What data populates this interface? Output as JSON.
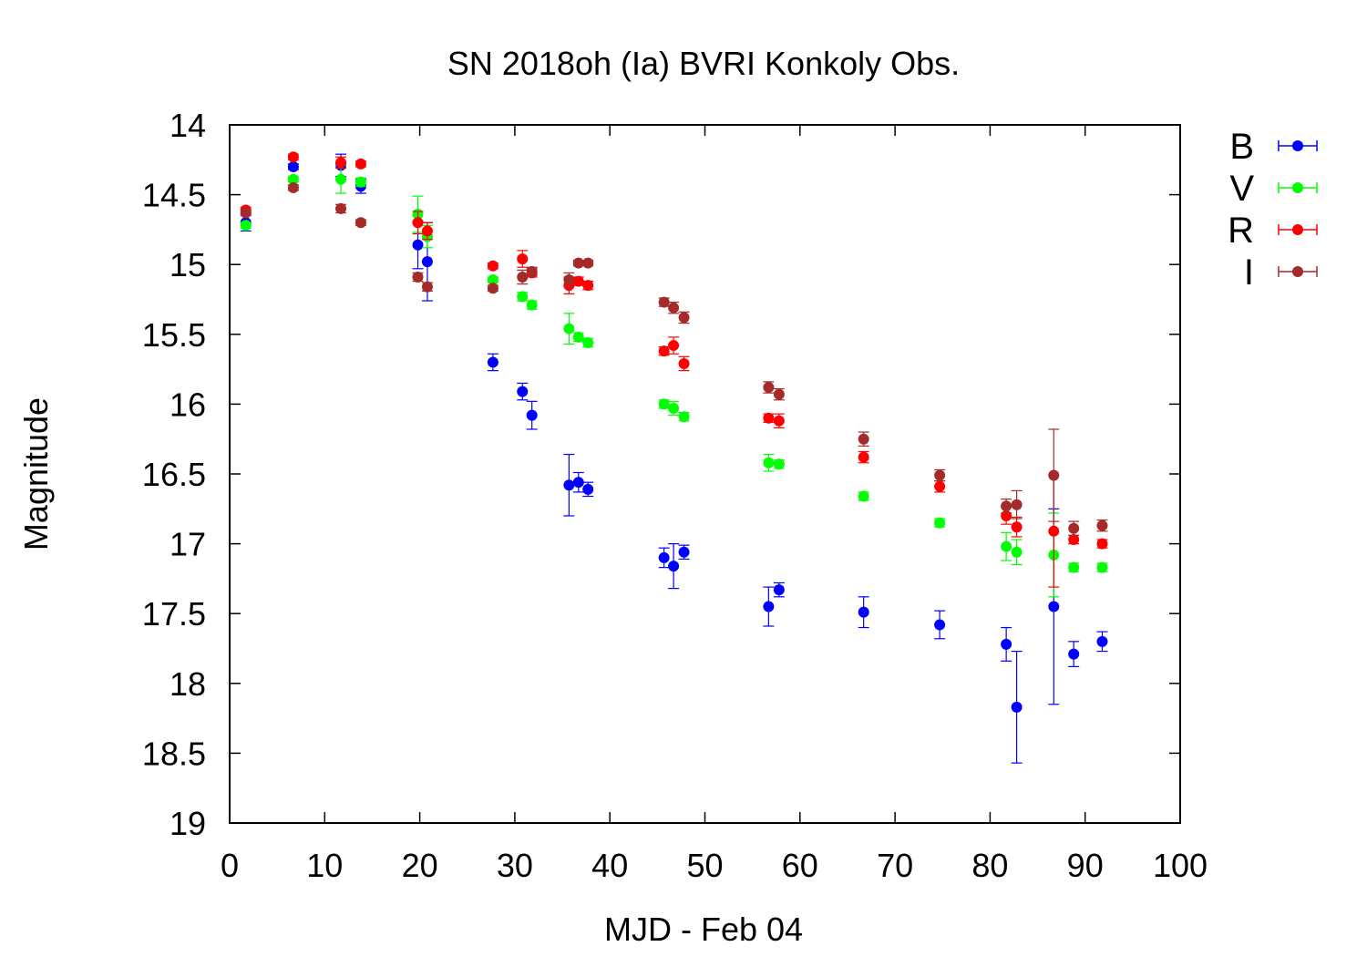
{
  "chart_data": {
    "type": "scatter",
    "title": "SN 2018oh (Ia) BVRI Konkoly Obs.",
    "xlabel": "MJD - Feb 04",
    "ylabel": "Magnitude",
    "xlim": [
      0,
      100
    ],
    "ylim": [
      14,
      19
    ],
    "y_inverted": true,
    "grid": false,
    "legend_position": "outside-right",
    "error_bars": true,
    "x_ticks": [
      0,
      10,
      20,
      30,
      40,
      50,
      60,
      70,
      80,
      90,
      100
    ],
    "y_ticks": [
      14,
      14.5,
      15,
      15.5,
      16,
      16.5,
      17,
      17.5,
      18,
      18.5,
      19
    ],
    "series": [
      {
        "name": "B",
        "color": "#0000ff",
        "points": [
          {
            "x": 1.7,
            "y": 14.7,
            "err": 0.06
          },
          {
            "x": 6.7,
            "y": 14.3,
            "err": 0.02
          },
          {
            "x": 11.7,
            "y": 14.29,
            "err": 0.08
          },
          {
            "x": 13.8,
            "y": 14.44,
            "err": 0.05
          },
          {
            "x": 19.8,
            "y": 14.86,
            "err": 0.17
          },
          {
            "x": 20.8,
            "y": 14.98,
            "err": 0.28
          },
          {
            "x": 27.7,
            "y": 15.7,
            "err": 0.06
          },
          {
            "x": 30.8,
            "y": 15.91,
            "err": 0.06
          },
          {
            "x": 31.8,
            "y": 16.08,
            "err": 0.1
          },
          {
            "x": 35.7,
            "y": 16.58,
            "err": 0.22
          },
          {
            "x": 36.7,
            "y": 16.56,
            "err": 0.07
          },
          {
            "x": 37.7,
            "y": 16.61,
            "err": 0.05
          },
          {
            "x": 45.7,
            "y": 17.1,
            "err": 0.07
          },
          {
            "x": 46.7,
            "y": 17.16,
            "err": 0.16
          },
          {
            "x": 47.8,
            "y": 17.06,
            "err": 0.05
          },
          {
            "x": 56.7,
            "y": 17.45,
            "err": 0.14
          },
          {
            "x": 57.8,
            "y": 17.33,
            "err": 0.05
          },
          {
            "x": 66.7,
            "y": 17.49,
            "err": 0.11
          },
          {
            "x": 74.7,
            "y": 17.58,
            "err": 0.1
          },
          {
            "x": 81.7,
            "y": 17.72,
            "err": 0.12
          },
          {
            "x": 82.8,
            "y": 18.17,
            "err": 0.4
          },
          {
            "x": 86.7,
            "y": 17.45,
            "err": 0.7
          },
          {
            "x": 88.8,
            "y": 17.79,
            "err": 0.09
          },
          {
            "x": 91.8,
            "y": 17.7,
            "err": 0.07
          }
        ]
      },
      {
        "name": "V",
        "color": "#00ff00",
        "points": [
          {
            "x": 1.7,
            "y": 14.72,
            "err": 0.02
          },
          {
            "x": 6.7,
            "y": 14.39,
            "err": 0.02
          },
          {
            "x": 11.7,
            "y": 14.39,
            "err": 0.1
          },
          {
            "x": 13.8,
            "y": 14.41,
            "err": 0.03
          },
          {
            "x": 19.8,
            "y": 14.64,
            "err": 0.13
          },
          {
            "x": 20.8,
            "y": 14.8,
            "err": 0.08
          },
          {
            "x": 27.7,
            "y": 15.11,
            "err": 0.02
          },
          {
            "x": 30.8,
            "y": 15.23,
            "err": 0.03
          },
          {
            "x": 31.8,
            "y": 15.29,
            "err": 0.03
          },
          {
            "x": 35.7,
            "y": 15.46,
            "err": 0.11
          },
          {
            "x": 36.7,
            "y": 15.52,
            "err": 0.03
          },
          {
            "x": 37.7,
            "y": 15.56,
            "err": 0.03
          },
          {
            "x": 45.7,
            "y": 16.0,
            "err": 0.03
          },
          {
            "x": 46.7,
            "y": 16.03,
            "err": 0.05
          },
          {
            "x": 47.8,
            "y": 16.09,
            "err": 0.03
          },
          {
            "x": 56.7,
            "y": 16.42,
            "err": 0.06
          },
          {
            "x": 57.8,
            "y": 16.43,
            "err": 0.03
          },
          {
            "x": 66.7,
            "y": 16.66,
            "err": 0.03
          },
          {
            "x": 74.7,
            "y": 16.85,
            "err": 0.03
          },
          {
            "x": 81.7,
            "y": 17.02,
            "err": 0.1
          },
          {
            "x": 82.8,
            "y": 17.06,
            "err": 0.09
          },
          {
            "x": 86.7,
            "y": 17.08,
            "err": 0.3
          },
          {
            "x": 88.8,
            "y": 17.17,
            "err": 0.03
          },
          {
            "x": 91.8,
            "y": 17.17,
            "err": 0.03
          }
        ]
      },
      {
        "name": "R",
        "color": "#ff0000",
        "points": [
          {
            "x": 1.7,
            "y": 14.61,
            "err": 0.02
          },
          {
            "x": 6.7,
            "y": 14.23,
            "err": 0.02
          },
          {
            "x": 11.7,
            "y": 14.27,
            "err": 0.04
          },
          {
            "x": 13.8,
            "y": 14.28,
            "err": 0.02
          },
          {
            "x": 19.8,
            "y": 14.7,
            "err": 0.08
          },
          {
            "x": 20.8,
            "y": 14.76,
            "err": 0.06
          },
          {
            "x": 27.7,
            "y": 15.01,
            "err": 0.02
          },
          {
            "x": 30.8,
            "y": 14.96,
            "err": 0.06
          },
          {
            "x": 31.8,
            "y": 15.06,
            "err": 0.03
          },
          {
            "x": 35.7,
            "y": 15.15,
            "err": 0.06
          },
          {
            "x": 36.7,
            "y": 15.12,
            "err": 0.03
          },
          {
            "x": 37.7,
            "y": 15.15,
            "err": 0.03
          },
          {
            "x": 45.7,
            "y": 15.62,
            "err": 0.03
          },
          {
            "x": 46.7,
            "y": 15.58,
            "err": 0.06
          },
          {
            "x": 47.8,
            "y": 15.71,
            "err": 0.05
          },
          {
            "x": 56.7,
            "y": 16.1,
            "err": 0.03
          },
          {
            "x": 57.8,
            "y": 16.12,
            "err": 0.05
          },
          {
            "x": 66.7,
            "y": 16.38,
            "err": 0.04
          },
          {
            "x": 74.7,
            "y": 16.59,
            "err": 0.04
          },
          {
            "x": 81.7,
            "y": 16.8,
            "err": 0.06
          },
          {
            "x": 82.8,
            "y": 16.88,
            "err": 0.07
          },
          {
            "x": 86.7,
            "y": 16.91,
            "err": 0.4
          },
          {
            "x": 88.8,
            "y": 16.97,
            "err": 0.03
          },
          {
            "x": 91.8,
            "y": 17.0,
            "err": 0.03
          }
        ]
      },
      {
        "name": "I",
        "color": "#a52a2a",
        "points": [
          {
            "x": 1.7,
            "y": 14.63,
            "err": 0.02
          },
          {
            "x": 6.7,
            "y": 14.45,
            "err": 0.02
          },
          {
            "x": 11.7,
            "y": 14.6,
            "err": 0.03
          },
          {
            "x": 13.8,
            "y": 14.7,
            "err": 0.02
          },
          {
            "x": 19.8,
            "y": 15.09,
            "err": 0.03
          },
          {
            "x": 20.8,
            "y": 15.16,
            "err": 0.03
          },
          {
            "x": 27.7,
            "y": 15.17,
            "err": 0.02
          },
          {
            "x": 30.8,
            "y": 15.09,
            "err": 0.05
          },
          {
            "x": 31.8,
            "y": 15.05,
            "err": 0.03
          },
          {
            "x": 35.7,
            "y": 15.11,
            "err": 0.05
          },
          {
            "x": 36.7,
            "y": 14.99,
            "err": 0.02
          },
          {
            "x": 37.7,
            "y": 14.99,
            "err": 0.02
          },
          {
            "x": 45.7,
            "y": 15.27,
            "err": 0.03
          },
          {
            "x": 46.7,
            "y": 15.31,
            "err": 0.04
          },
          {
            "x": 47.8,
            "y": 15.38,
            "err": 0.04
          },
          {
            "x": 56.7,
            "y": 15.88,
            "err": 0.04
          },
          {
            "x": 57.8,
            "y": 15.93,
            "err": 0.04
          },
          {
            "x": 66.7,
            "y": 16.25,
            "err": 0.05
          },
          {
            "x": 74.7,
            "y": 16.51,
            "err": 0.04
          },
          {
            "x": 81.7,
            "y": 16.73,
            "err": 0.05
          },
          {
            "x": 82.8,
            "y": 16.72,
            "err": 0.1
          },
          {
            "x": 86.7,
            "y": 16.51,
            "err": 0.33
          },
          {
            "x": 88.8,
            "y": 16.89,
            "err": 0.05
          },
          {
            "x": 91.8,
            "y": 16.87,
            "err": 0.04
          }
        ]
      }
    ]
  }
}
